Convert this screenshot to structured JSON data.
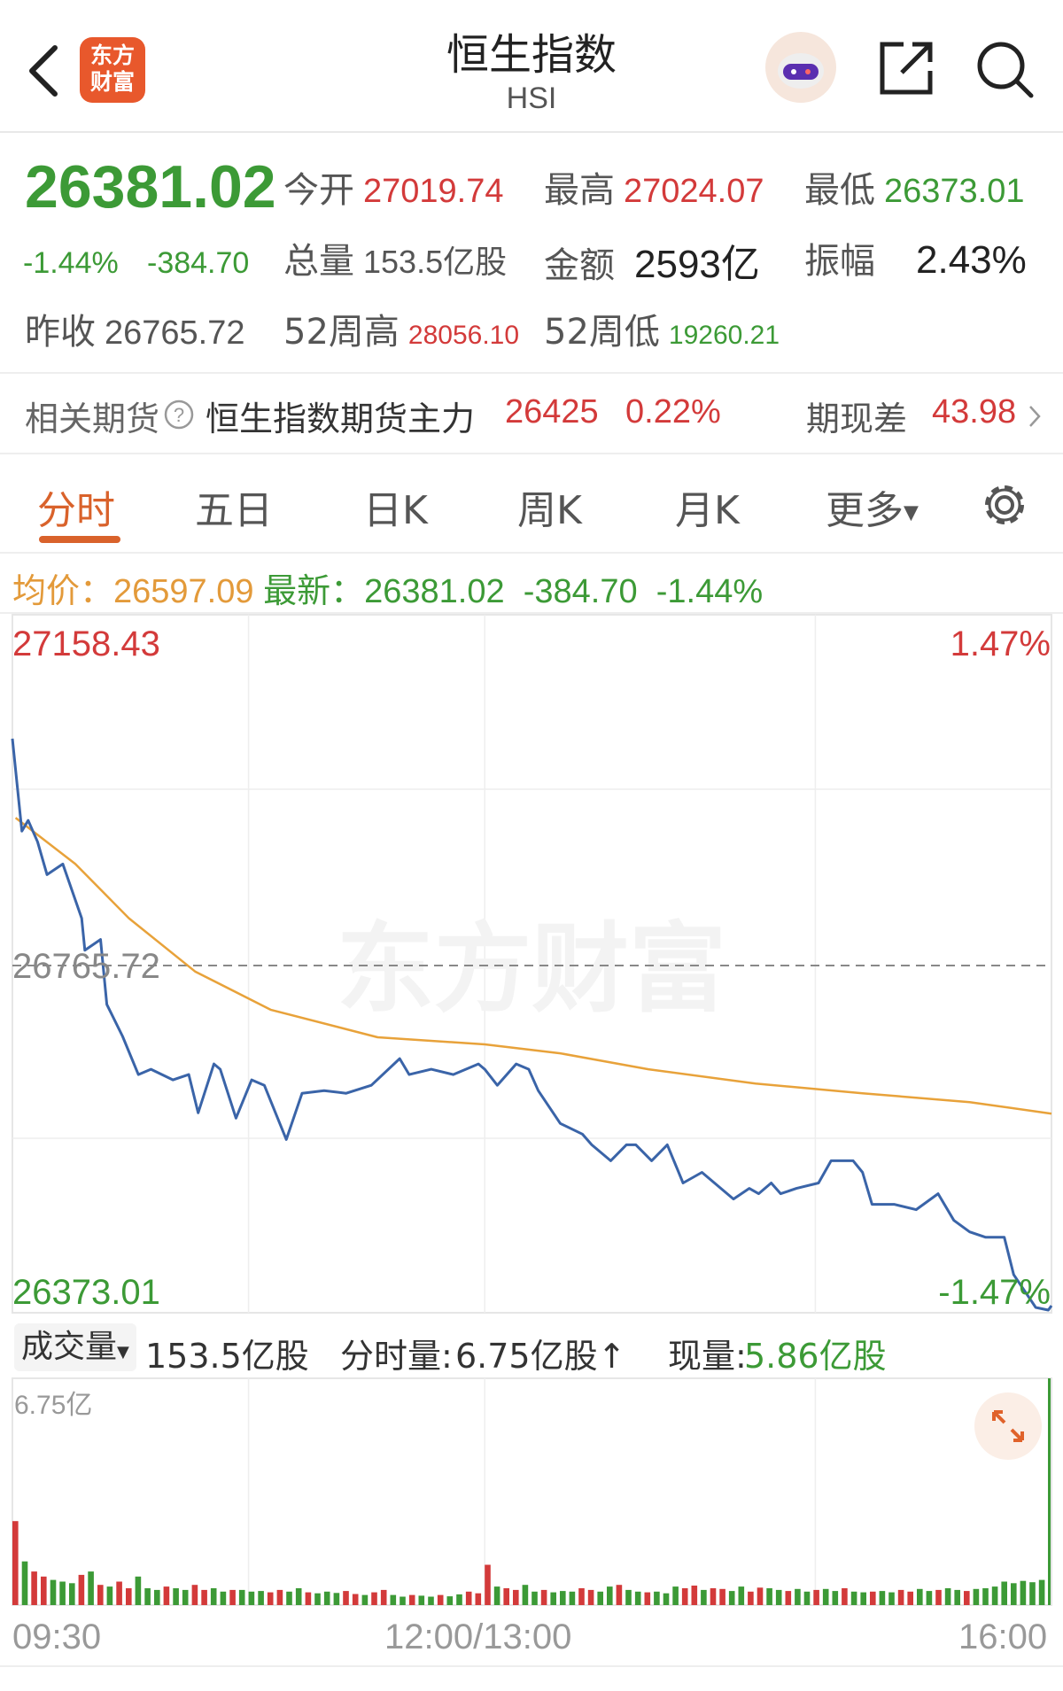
{
  "header": {
    "title": "恒生指数",
    "code": "HSI",
    "logo_text": [
      "东方",
      "财富"
    ]
  },
  "quote": {
    "price": "26381.02",
    "change_pct": "-1.44%",
    "change": "-384.70",
    "open_label": "今开",
    "open": "27019.74",
    "high_label": "最高",
    "high": "27024.07",
    "low_label": "最低",
    "low": "26373.01",
    "volume_label": "总量",
    "volume": "153.5亿股",
    "amount_label": "金额",
    "amount": "2593亿",
    "amplitude_label": "振幅",
    "amplitude": "2.43%",
    "prev_close_label": "昨收",
    "prev_close": "26765.72",
    "w52_high_label": "52周高",
    "w52_high": "28056.10",
    "w52_low_label": "52周低",
    "w52_low": "19260.21"
  },
  "futures": {
    "label": "相关期货",
    "name": "恒生指数期货主力",
    "price": "26425",
    "pct": "0.22%",
    "basis_label": "期现差",
    "basis": "43.98"
  },
  "tabs": [
    {
      "label": "分时",
      "active": true
    },
    {
      "label": "五日"
    },
    {
      "label": "日K"
    },
    {
      "label": "周K"
    },
    {
      "label": "月K"
    },
    {
      "label": "更多"
    }
  ],
  "info": {
    "avg_label": "均价：",
    "avg": "26597.09",
    "latest_label": "最新：",
    "latest": "26381.02",
    "change": "-384.70",
    "pct": "-1.44%"
  },
  "colors": {
    "up": "#d33a3a",
    "down": "#3c9a36",
    "price_line": "#3a64a8",
    "avg_line": "#e8a23a",
    "accent": "#d9622b"
  },
  "chart_data": [
    {
      "type": "line",
      "ylim": [
        26373.01,
        27158.43
      ],
      "y_top_label": "27158.43",
      "y_bottom_label": "26373.01",
      "ref_label": "26765.72",
      "ref_value": 26765.72,
      "right_top_label": "1.47%",
      "right_bottom_label": "-1.47%",
      "watermark": "东方财富",
      "x_ticks": [
        "09:30",
        "12:00/13:00",
        "16:00"
      ],
      "series": [
        {
          "key": "price",
          "points": [
            [
              "09:30",
              27019
            ],
            [
              "09:33",
              26915
            ],
            [
              "09:35",
              26927
            ],
            [
              "09:38",
              26903
            ],
            [
              "09:41",
              26866
            ],
            [
              "09:46",
              26878
            ],
            [
              "09:52",
              26817
            ],
            [
              "09:53",
              26781
            ],
            [
              "09:58",
              26793
            ],
            [
              "10:00",
              26720
            ],
            [
              "10:05",
              26684
            ],
            [
              "10:10",
              26641
            ],
            [
              "10:14",
              26647
            ],
            [
              "10:21",
              26635
            ],
            [
              "10:26",
              26641
            ],
            [
              "10:29",
              26598
            ],
            [
              "10:34",
              26653
            ],
            [
              "10:36",
              26647
            ],
            [
              "10:41",
              26592
            ],
            [
              "10:46",
              26635
            ],
            [
              "10:50",
              26629
            ],
            [
              "10:57",
              26568
            ],
            [
              "11:02",
              26620
            ],
            [
              "11:09",
              26623
            ],
            [
              "11:16",
              26620
            ],
            [
              "11:24",
              26629
            ],
            [
              "11:33",
              26659
            ],
            [
              "11:36",
              26641
            ],
            [
              "11:43",
              26647
            ],
            [
              "11:50",
              26641
            ],
            [
              "11:58",
              26653
            ],
            [
              "12:00",
              26647
            ],
            [
              "13:04",
              26629
            ],
            [
              "13:10",
              26653
            ],
            [
              "13:14",
              26647
            ],
            [
              "13:17",
              26623
            ],
            [
              "13:24",
              26586
            ],
            [
              "13:31",
              26574
            ],
            [
              "13:34",
              26562
            ],
            [
              "13:40",
              26544
            ],
            [
              "13:45",
              26562
            ],
            [
              "13:48",
              26562
            ],
            [
              "13:53",
              26544
            ],
            [
              "13:58",
              26562
            ],
            [
              "14:03",
              26519
            ],
            [
              "14:09",
              26531
            ],
            [
              "14:19",
              26501
            ],
            [
              "14:24",
              26513
            ],
            [
              "14:27",
              26507
            ],
            [
              "14:31",
              26519
            ],
            [
              "14:34",
              26507
            ],
            [
              "14:39",
              26513
            ],
            [
              "14:46",
              26519
            ],
            [
              "14:50",
              26544
            ],
            [
              "14:57",
              26544
            ],
            [
              "15:00",
              26531
            ],
            [
              "15:03",
              26495
            ],
            [
              "15:10",
              26495
            ],
            [
              "15:17",
              26489
            ],
            [
              "15:24",
              26507
            ],
            [
              "15:29",
              26477
            ],
            [
              "15:34",
              26464
            ],
            [
              "15:39",
              26458
            ],
            [
              "15:45",
              26458
            ],
            [
              "15:48",
              26416
            ],
            [
              "15:55",
              26379
            ],
            [
              "15:59",
              26376
            ],
            [
              "16:00",
              26381.02
            ]
          ]
        },
        {
          "key": "avg",
          "points": [
            [
              "09:31",
              26930
            ],
            [
              "09:50",
              26878
            ],
            [
              "10:07",
              26817
            ],
            [
              "10:28",
              26757
            ],
            [
              "10:52",
              26714
            ],
            [
              "11:26",
              26683
            ],
            [
              "12:00",
              26675
            ],
            [
              "13:24",
              26665
            ],
            [
              "13:52",
              26647
            ],
            [
              "14:26",
              26631
            ],
            [
              "15:00",
              26620
            ],
            [
              "15:34",
              26610
            ],
            [
              "16:00",
              26597.09
            ]
          ]
        }
      ]
    },
    {
      "type": "bar",
      "selector_label": "成交量",
      "total": "153.5亿股",
      "minute_vol_label": "分时量:",
      "minute_vol": "6.75亿股↑",
      "current_vol_label": "现量:",
      "current_vol": "5.86亿股",
      "ymax_label": "6.75亿",
      "ymax": 6.75,
      "unit": "亿",
      "morning": [
        2.5,
        1.3,
        1.0,
        0.85,
        0.75,
        0.7,
        0.65,
        0.9,
        1.0,
        0.6,
        0.55,
        0.7,
        0.5,
        0.85,
        0.5,
        0.45,
        0.55,
        0.5,
        0.45,
        0.6,
        0.45,
        0.5,
        0.4,
        0.45,
        0.45,
        0.4,
        0.42,
        0.38,
        0.45,
        0.4,
        0.5,
        0.38,
        0.35,
        0.4,
        0.36,
        0.42,
        0.33,
        0.3,
        0.38,
        0.45,
        0.3,
        0.25,
        0.3,
        0.28,
        0.25,
        0.3,
        0.26,
        0.32,
        0.4,
        0.35
      ],
      "afternoon": [
        1.2,
        0.55,
        0.5,
        0.45,
        0.6,
        0.4,
        0.45,
        0.38,
        0.42,
        0.4,
        0.5,
        0.45,
        0.4,
        0.55,
        0.6,
        0.45,
        0.4,
        0.38,
        0.4,
        0.35,
        0.55,
        0.5,
        0.58,
        0.45,
        0.5,
        0.48,
        0.42,
        0.55,
        0.4,
        0.52,
        0.5,
        0.45,
        0.42,
        0.48,
        0.4,
        0.45,
        0.48,
        0.42,
        0.5,
        0.4,
        0.38,
        0.4,
        0.42,
        0.38,
        0.45,
        0.4,
        0.48,
        0.42,
        0.45,
        0.5,
        0.45,
        0.42,
        0.48,
        0.5,
        0.55,
        0.7,
        0.65,
        0.72,
        0.68,
        0.75
      ],
      "morning_dir": "uduudddududuudddudduudduddduudduddduuduudduddudduu",
      "afternoon_dir": "uduudduddduuddudduddduuduudduudduddudduddudduuddudduddddddddd",
      "close_bar": 6.75
    }
  ]
}
